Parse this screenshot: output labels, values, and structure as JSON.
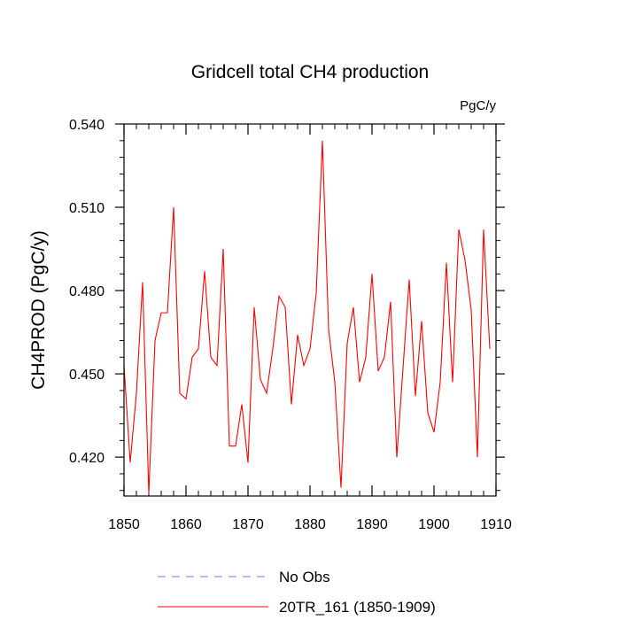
{
  "chart_data": {
    "type": "line",
    "title": "Gridcell total CH4 production",
    "units": "PgC/y",
    "xlabel": "",
    "ylabel": "CH4PROD  (PgC/y)",
    "xlim": [
      1850,
      1910
    ],
    "ylim": [
      0.406,
      0.54
    ],
    "x_ticks": [
      1850,
      1860,
      1870,
      1880,
      1890,
      1900,
      1910
    ],
    "y_ticks": [
      "0.420",
      "0.450",
      "0.480",
      "0.510",
      "0.540"
    ],
    "y_tick_values": [
      0.42,
      0.45,
      0.48,
      0.51,
      0.54
    ],
    "grid": false,
    "series": [
      {
        "name": "20TR_161 (1850-1909)",
        "color": "#ff0000",
        "dash": "solid",
        "x": [
          1850,
          1851,
          1852,
          1853,
          1854,
          1855,
          1856,
          1857,
          1858,
          1859,
          1860,
          1861,
          1862,
          1863,
          1864,
          1865,
          1866,
          1867,
          1868,
          1869,
          1870,
          1871,
          1872,
          1873,
          1874,
          1875,
          1876,
          1877,
          1878,
          1879,
          1880,
          1881,
          1882,
          1883,
          1884,
          1885,
          1886,
          1887,
          1888,
          1889,
          1890,
          1891,
          1892,
          1893,
          1894,
          1895,
          1896,
          1897,
          1898,
          1899,
          1900,
          1901,
          1902,
          1903,
          1904,
          1905,
          1906,
          1907,
          1908,
          1909
        ],
        "values": [
          0.453,
          0.418,
          0.443,
          0.483,
          0.407,
          0.462,
          0.472,
          0.472,
          0.51,
          0.443,
          0.441,
          0.456,
          0.459,
          0.487,
          0.456,
          0.453,
          0.495,
          0.424,
          0.424,
          0.439,
          0.418,
          0.474,
          0.448,
          0.443,
          0.459,
          0.478,
          0.474,
          0.439,
          0.464,
          0.453,
          0.459,
          0.479,
          0.534,
          0.466,
          0.447,
          0.409,
          0.461,
          0.474,
          0.447,
          0.456,
          0.486,
          0.451,
          0.456,
          0.476,
          0.42,
          0.452,
          0.484,
          0.442,
          0.469,
          0.436,
          0.429,
          0.447,
          0.49,
          0.447,
          0.502,
          0.491,
          0.473,
          0.42,
          0.502,
          0.459
        ]
      }
    ],
    "legend": [
      {
        "label": "No Obs",
        "color": "#6f6fff",
        "dash": "dashed"
      },
      {
        "label": "20TR_161 (1850-1909)",
        "color": "#ff0000",
        "dash": "solid"
      }
    ]
  }
}
